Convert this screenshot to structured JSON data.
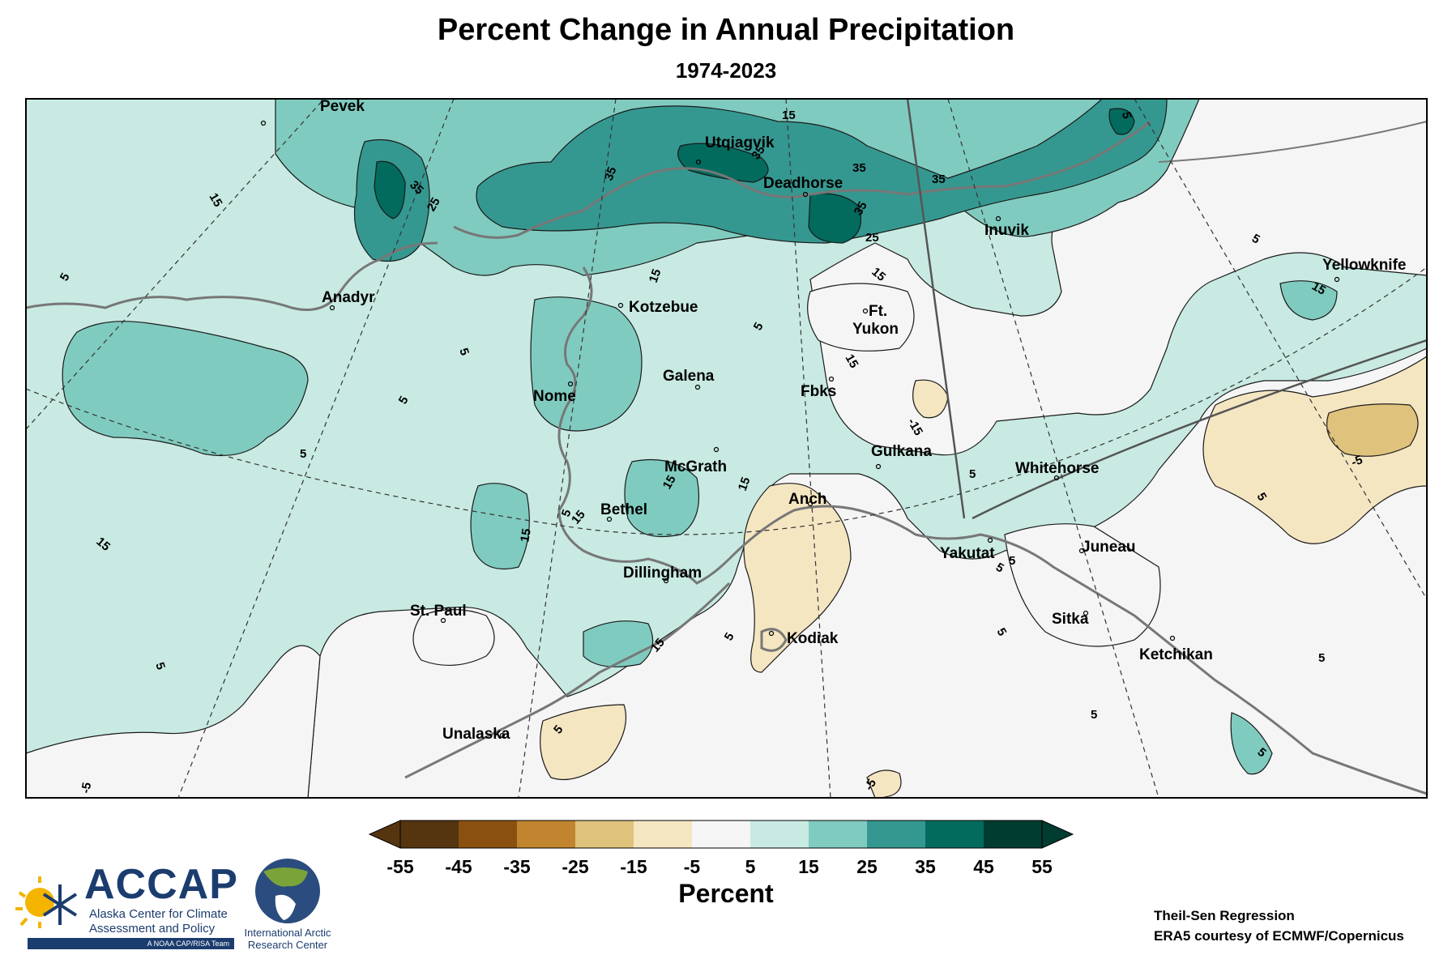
{
  "title": "Percent Change in Annual Precipitation",
  "subtitle": "1974-2023",
  "colorbar": {
    "unit_label": "Percent",
    "ticks": [
      "-55",
      "-45",
      "-35",
      "-25",
      "-15",
      "-5",
      "5",
      "15",
      "25",
      "35",
      "45",
      "55"
    ],
    "colors": [
      "#553410",
      "#8a500f",
      "#c0852e",
      "#dfc27c",
      "#f5e6c2",
      "#f5f5f5",
      "#c8eae2",
      "#80cbbf",
      "#359890",
      "#026b5e",
      "#003c2f"
    ]
  },
  "places": {
    "pevek": "Pevek",
    "utqiagvik": "Utqiagvik",
    "deadhorse": "Deadhorse",
    "inuvik": "Inuvik",
    "yellowknife": "Yellowknife",
    "anadyr": "Anadyr",
    "kotzebue": "Kotzebue",
    "ft": "Ft.",
    "yukon": "Yukon",
    "galena": "Galena",
    "nome": "Nome",
    "fbks": "Fbks",
    "gulkana": "Gulkana",
    "whitehorse": "Whitehorse",
    "mcgrath": "McGrath",
    "anch": "Anch",
    "bethel": "Bethel",
    "juneau": "Juneau",
    "yakutat": "Yakutat",
    "dillingham": "Dillingham",
    "st_paul": "St. Paul",
    "sitka": "Sitka",
    "kodiak": "Kodiak",
    "ketchikan": "Ketchikan",
    "unalaska": "Unalaska"
  },
  "contour_labels": [
    "15",
    "35",
    "25",
    "35",
    "15",
    "35",
    "35",
    "35",
    "25",
    "35",
    "15",
    "5",
    "5",
    "15",
    "5",
    "15",
    "5",
    "5",
    "5",
    "15",
    "15",
    "15",
    "15",
    "15",
    "5",
    "5",
    "5",
    "-5",
    "-15",
    "-5",
    "5",
    "5",
    "5",
    "5",
    "5",
    "5",
    "-5",
    "5",
    "5",
    "15",
    "5",
    "5",
    "15"
  ],
  "logos": {
    "accap_name": "ACCAP",
    "accap_line1": "Alaska Center for Climate",
    "accap_line2": "Assessment and Policy",
    "accap_tag": "A NOAA CAP/RISA Team",
    "iarc_line1": "International Arctic",
    "iarc_line2": "Research Center"
  },
  "credits": {
    "method": "Theil-Sen Regression",
    "source": "ERA5 courtesy of ECMWF/Copernicus"
  }
}
